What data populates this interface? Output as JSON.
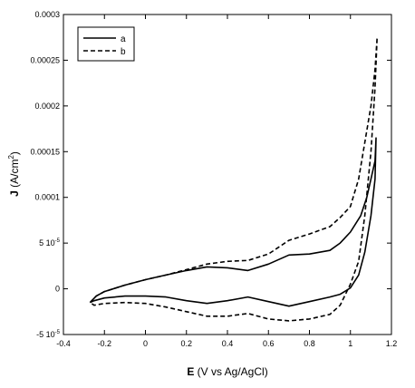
{
  "chart_data": {
    "type": "line",
    "xlabel_bold": "E",
    "xlabel_rest": " (V vs Ag/AgCl)",
    "ylabel_bold": "J",
    "ylabel_rest": " (A/cm",
    "ylabel_sup": "2",
    "ylabel_close": ")",
    "xlim": [
      -0.4,
      1.2
    ],
    "ylim": [
      -5e-05,
      0.0003
    ],
    "x_ticks": [
      -0.4,
      -0.2,
      0,
      0.2,
      0.4,
      0.6,
      0.8,
      1,
      1.2
    ],
    "x_tick_labels": [
      "-0.4",
      "-0.2",
      "0",
      "0.2",
      "0.4",
      "0.6",
      "0.8",
      "1",
      "1.2"
    ],
    "y_ticks": [
      -5e-05,
      0,
      5e-05,
      0.0001,
      0.00015,
      0.0002,
      0.00025,
      0.0003
    ],
    "y_tick_labels": [
      {
        "base": "-5 10",
        "exp": "-5"
      },
      {
        "base": "0",
        "exp": ""
      },
      {
        "base": "5 10",
        "exp": "-5"
      },
      {
        "base": "0.0001",
        "exp": ""
      },
      {
        "base": "0.00015",
        "exp": ""
      },
      {
        "base": "0.0002",
        "exp": ""
      },
      {
        "base": "0.00025",
        "exp": ""
      },
      {
        "base": "0.0003",
        "exp": ""
      }
    ],
    "grid": false,
    "legend_position": "top-left",
    "series": [
      {
        "name": "a",
        "style": "solid",
        "color": "#000000",
        "x": [
          -0.27,
          -0.24,
          -0.2,
          -0.1,
          0.0,
          0.1,
          0.2,
          0.3,
          0.4,
          0.5,
          0.6,
          0.7,
          0.8,
          0.9,
          0.95,
          1.0,
          1.05,
          1.08,
          1.1,
          1.12,
          1.125,
          1.12,
          1.1,
          1.07,
          1.04,
          1.0,
          0.95,
          0.9,
          0.8,
          0.7,
          0.6,
          0.5,
          0.4,
          0.3,
          0.2,
          0.1,
          0.0,
          -0.1,
          -0.2,
          -0.25,
          -0.27
        ],
        "y": [
          -1.5e-05,
          -8e-06,
          -3e-06,
          4e-06,
          1e-05,
          1.5e-05,
          2e-05,
          2.4e-05,
          2.3e-05,
          2e-05,
          2.7e-05,
          3.7e-05,
          3.8e-05,
          4.2e-05,
          5e-05,
          6.2e-05,
          8e-05,
          0.0001,
          0.00012,
          0.00014,
          0.000165,
          0.00012,
          8e-05,
          4e-05,
          1.5e-05,
          1e-06,
          -6e-06,
          -9e-06,
          -1.4e-05,
          -1.9e-05,
          -1.4e-05,
          -9e-06,
          -1.3e-05,
          -1.6e-05,
          -1.3e-05,
          -9e-06,
          -8e-06,
          -8e-06,
          -1e-05,
          -1.3e-05,
          -1.5e-05
        ]
      },
      {
        "name": "b",
        "style": "dashed",
        "color": "#000000",
        "x": [
          -0.27,
          -0.24,
          -0.2,
          -0.1,
          0.0,
          0.1,
          0.2,
          0.3,
          0.4,
          0.5,
          0.6,
          0.7,
          0.8,
          0.9,
          0.95,
          1.0,
          1.04,
          1.07,
          1.1,
          1.12,
          1.13,
          1.12,
          1.1,
          1.07,
          1.04,
          1.0,
          0.95,
          0.9,
          0.8,
          0.7,
          0.6,
          0.5,
          0.4,
          0.3,
          0.2,
          0.1,
          0.0,
          -0.1,
          -0.2,
          -0.25,
          -0.27
        ],
        "y": [
          -1.5e-05,
          -8e-06,
          -3e-06,
          4e-06,
          1e-05,
          1.5e-05,
          2.1e-05,
          2.7e-05,
          3e-05,
          3.1e-05,
          3.8e-05,
          5.3e-05,
          6e-05,
          6.8e-05,
          7.8e-05,
          9e-05,
          0.00012,
          0.00016,
          0.0002,
          0.00024,
          0.000275,
          0.00022,
          0.00015,
          8e-05,
          3e-05,
          5e-06,
          -1.8e-05,
          -2.8e-05,
          -3.3e-05,
          -3.5e-05,
          -3.3e-05,
          -2.7e-05,
          -3e-05,
          -3e-05,
          -2.5e-05,
          -2e-05,
          -1.6e-05,
          -1.5e-05,
          -1.6e-05,
          -1.8e-05,
          -1.5e-05
        ]
      }
    ]
  }
}
